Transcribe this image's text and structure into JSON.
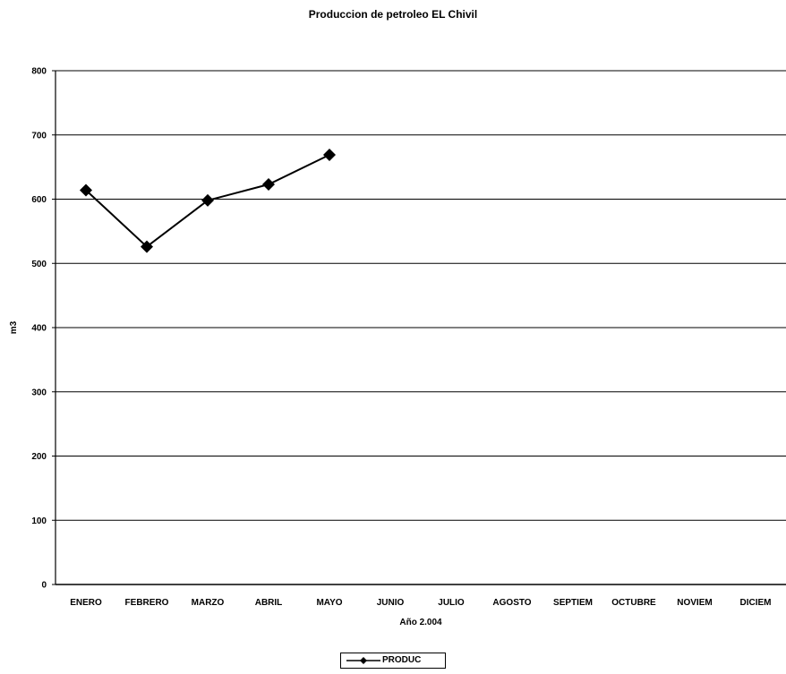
{
  "chart_data": {
    "type": "line",
    "title": "Produccion de petroleo EL Chivil",
    "xlabel": "Año 2.004",
    "ylabel": "m3",
    "categories": [
      "ENERO",
      "FEBRERO",
      "MARZO",
      "ABRIL",
      "MAYO",
      "JUNIO",
      "JULIO",
      "AGOSTO",
      "SEPTIEM",
      "OCTUBRE",
      "NOVIEM",
      "DICIEM"
    ],
    "series": [
      {
        "name": "PRODUC",
        "values": [
          614,
          526,
          598,
          623,
          669,
          null,
          null,
          null,
          null,
          null,
          null,
          null
        ]
      }
    ],
    "ylim": [
      0,
      800
    ],
    "yticks": [
      0,
      100,
      200,
      300,
      400,
      500,
      600,
      700,
      800
    ],
    "grid": true,
    "legend_position": "bottom-center",
    "line_color": "#000000",
    "marker": "diamond"
  }
}
